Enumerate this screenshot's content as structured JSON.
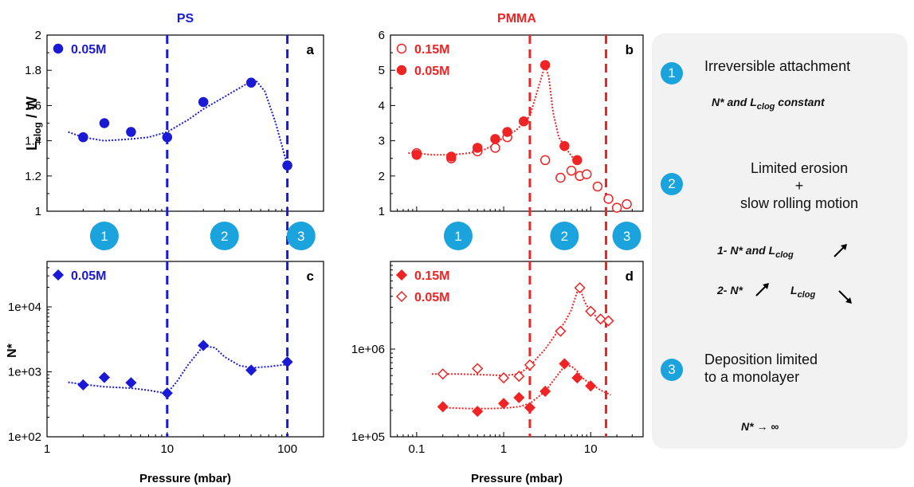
{
  "chart_data": [
    {
      "id": "a",
      "type": "scatter",
      "title": "PS",
      "ylabel": "Lclog / W",
      "x_scale": "log",
      "xlim": [
        1,
        200
      ],
      "ylim": [
        1,
        2
      ],
      "yticks": [
        "1",
        "1.2",
        "1.4",
        "1.6",
        "1.8",
        "2"
      ],
      "xticks": [],
      "vlines": [
        10,
        100
      ],
      "series": [
        {
          "name": "0.05M",
          "marker": "filled-circle",
          "x": [
            2,
            3,
            5,
            10,
            20,
            50,
            100
          ],
          "y": [
            1.42,
            1.5,
            1.45,
            1.42,
            1.62,
            1.73,
            1.26
          ]
        }
      ],
      "fit": [
        {
          "x": [
            1.5,
            2,
            3,
            5,
            7,
            10,
            15,
            20,
            30,
            45,
            55,
            65,
            80,
            100
          ],
          "y": [
            1.45,
            1.42,
            1.4,
            1.41,
            1.42,
            1.45,
            1.52,
            1.58,
            1.65,
            1.72,
            1.74,
            1.68,
            1.5,
            1.26
          ]
        }
      ]
    },
    {
      "id": "b",
      "type": "scatter",
      "title": "PMMA",
      "ylabel": "",
      "x_scale": "log",
      "xlim": [
        0.05,
        40
      ],
      "ylim": [
        1,
        6
      ],
      "yticks": [
        "1",
        "2",
        "3",
        "4",
        "5",
        "6"
      ],
      "xticks": [],
      "vlines": [
        2,
        15
      ],
      "series": [
        {
          "name": "0.15M",
          "marker": "open-circle",
          "x": [
            0.1,
            0.25,
            0.5,
            0.8,
            1.1,
            3,
            4.5,
            6,
            7.5,
            9,
            12,
            16,
            20,
            26
          ],
          "y": [
            2.65,
            2.5,
            2.7,
            2.8,
            3.1,
            2.45,
            1.95,
            2.15,
            2.0,
            2.05,
            1.7,
            1.35,
            1.1,
            1.2
          ]
        },
        {
          "name": "0.05M",
          "marker": "filled-circle",
          "x": [
            0.1,
            0.25,
            0.5,
            0.8,
            1.1,
            1.7,
            3,
            5,
            7
          ],
          "y": [
            2.6,
            2.55,
            2.8,
            3.05,
            3.25,
            3.55,
            5.15,
            2.85,
            2.45
          ]
        }
      ],
      "fit": [
        {
          "x": [
            0.08,
            0.1,
            0.15,
            0.25,
            0.4,
            0.6,
            0.8,
            1.0,
            1.4,
            2.0,
            2.5,
            3.0,
            3.3,
            3.7,
            4.3,
            5.5,
            7.0
          ],
          "y": [
            2.65,
            2.65,
            2.6,
            2.6,
            2.65,
            2.75,
            2.9,
            3.1,
            3.3,
            3.7,
            4.5,
            5.15,
            4.8,
            3.8,
            3.1,
            2.7,
            2.35
          ]
        }
      ]
    },
    {
      "id": "c",
      "type": "scatter",
      "ylabel": "N*",
      "xlabel": "Pressure (mbar)",
      "x_scale": "log",
      "y_scale": "log",
      "xlim": [
        1,
        200
      ],
      "ylim": [
        100,
        50000
      ],
      "xticks": [
        "1",
        "10",
        "100"
      ],
      "yticks": [
        "1e+02",
        "1e+03",
        "1e+04"
      ],
      "vlines": [
        10,
        100
      ],
      "series": [
        {
          "name": "0.05M",
          "marker": "filled-diamond",
          "x": [
            2,
            3,
            5,
            10,
            20,
            50,
            100
          ],
          "y": [
            630,
            820,
            680,
            470,
            2550,
            1060,
            1420
          ]
        }
      ],
      "fit": [
        {
          "x": [
            1.5,
            2,
            3,
            5,
            7,
            9,
            10,
            12,
            15,
            20,
            25,
            30,
            40,
            50,
            70,
            100
          ],
          "y": [
            690,
            640,
            590,
            560,
            520,
            480,
            470,
            700,
            1300,
            2500,
            2350,
            1700,
            1250,
            1150,
            1200,
            1300
          ]
        }
      ]
    },
    {
      "id": "d",
      "type": "scatter",
      "xlabel": "Pressure (mbar)",
      "x_scale": "log",
      "y_scale": "log",
      "xlim": [
        0.05,
        40
      ],
      "ylim": [
        100000,
        10000000
      ],
      "xticks": [
        "0.1",
        "1",
        "10"
      ],
      "yticks": [
        "1e+05",
        "1e+06"
      ],
      "vlines": [
        2,
        15
      ],
      "series": [
        {
          "name": "0.15M",
          "marker": "filled-diamond",
          "x": [
            0.2,
            0.5,
            1.0,
            1.5,
            2.0,
            3.0,
            5.0,
            7.0,
            10.0
          ],
          "y": [
            220000,
            195000,
            240000,
            280000,
            215000,
            330000,
            680000,
            470000,
            380000
          ]
        },
        {
          "name": "0.05M",
          "marker": "open-diamond",
          "x": [
            0.2,
            0.5,
            1.0,
            1.5,
            2.0,
            4.5,
            7.5,
            10,
            13,
            16
          ],
          "y": [
            520000,
            600000,
            470000,
            490000,
            660000,
            1600000,
            5000000,
            2700000,
            2200000,
            2100000
          ]
        }
      ],
      "fit": [
        {
          "x": [
            0.2,
            0.4,
            0.7,
            1.0,
            1.5,
            2.0,
            3.0,
            4.0,
            5.0,
            6.0,
            7.0,
            8.0,
            10.0,
            13.0,
            17.0
          ],
          "y": [
            215000,
            210000,
            210000,
            212000,
            220000,
            240000,
            330000,
            480000,
            640000,
            640000,
            560000,
            470000,
            400000,
            340000,
            300000
          ]
        },
        {
          "x": [
            0.15,
            0.3,
            0.6,
            1.0,
            1.5,
            2.0,
            3.0,
            4.0,
            5.0,
            6.0,
            7.0,
            7.5,
            8.5,
            10.0,
            13.0,
            17.0
          ],
          "y": [
            520000,
            520000,
            510000,
            500000,
            520000,
            640000,
            1000000,
            1500000,
            2000000,
            2800000,
            4500000,
            5000000,
            3500000,
            2600000,
            2200000,
            2000000
          ]
        }
      ]
    }
  ],
  "panel_titles": {
    "ps": "PS",
    "pmma": "PMMA"
  },
  "region_markers": {
    "ps": [
      {
        "num": "1",
        "x": 3.0
      },
      {
        "num": "2",
        "x": 30
      },
      {
        "num": "3",
        "x": 130
      }
    ],
    "pmma": [
      {
        "num": "1",
        "x": 0.3
      },
      {
        "num": "2",
        "x": 5.0
      },
      {
        "num": "3",
        "x": 26
      }
    ]
  },
  "colors": {
    "ps": "#1a1ad6",
    "pmma": "#f02424",
    "badge": "#1aa3dc",
    "box": "#f2f2f2"
  },
  "regimes": {
    "r1": {
      "num": "1",
      "text": "Irreversible attachment",
      "sub_pre": "N* and L",
      "sub_sub": "clog",
      "sub_post": " constant"
    },
    "r2": {
      "num": "2",
      "line1": "Limited erosion",
      "line2": "+",
      "line3": "slow rolling motion",
      "s1_pre": "1- N* and L",
      "s1_sub": "clog",
      "s2_pre": "2- N*",
      "s2_mid": "L",
      "s2_sub": "clog"
    },
    "r3": {
      "num": "3",
      "line1": "Deposition limited",
      "line2": "to a monolayer",
      "limit": "N* → ∞"
    }
  },
  "icons": [
    "up-right-arrow-icon",
    "down-right-arrow-icon"
  ]
}
